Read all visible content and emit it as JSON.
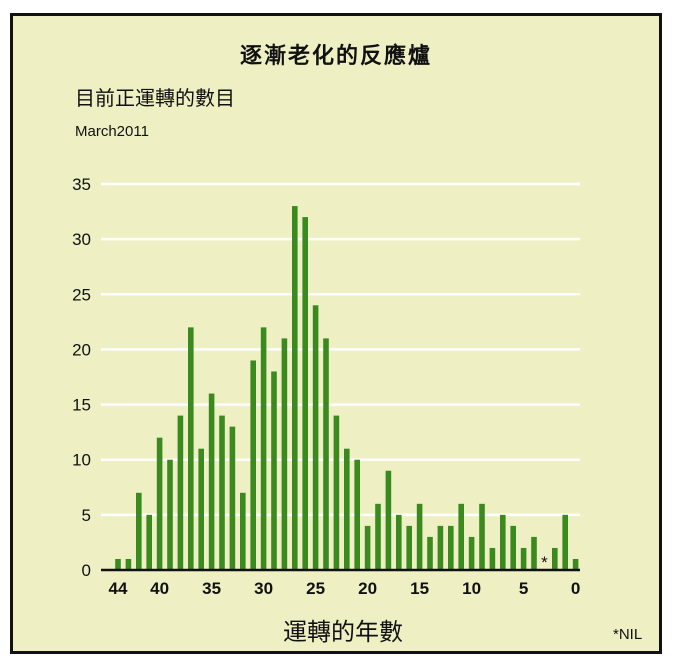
{
  "chart_data": {
    "type": "bar",
    "title": "逐漸老化的反應爐",
    "subtitle": "目前正運轉的數目",
    "date_label": "March2011",
    "xlabel": "運轉的年數",
    "ylabel": "",
    "note": "*NIL",
    "nil_marker": "*",
    "nil_category": 3,
    "ylim": [
      0,
      35
    ],
    "yticks": [
      0,
      5,
      10,
      15,
      20,
      25,
      30,
      35
    ],
    "xticks": [
      44,
      40,
      35,
      30,
      25,
      20,
      15,
      10,
      5,
      0
    ],
    "grid": true,
    "bar_color": "#3a8a1f",
    "categories": [
      44,
      43,
      42,
      41,
      40,
      39,
      38,
      37,
      36,
      35,
      34,
      33,
      32,
      31,
      30,
      29,
      28,
      27,
      26,
      25,
      24,
      23,
      22,
      21,
      20,
      19,
      18,
      17,
      16,
      15,
      14,
      13,
      12,
      11,
      10,
      9,
      8,
      7,
      6,
      5,
      4,
      3,
      2,
      1,
      0
    ],
    "values": [
      1,
      1,
      7,
      5,
      12,
      10,
      14,
      22,
      11,
      16,
      14,
      13,
      7,
      19,
      22,
      18,
      21,
      33,
      32,
      24,
      21,
      14,
      11,
      10,
      4,
      6,
      9,
      5,
      4,
      6,
      3,
      4,
      4,
      6,
      3,
      6,
      2,
      5,
      4,
      2,
      3,
      0,
      2,
      5,
      1
    ]
  }
}
